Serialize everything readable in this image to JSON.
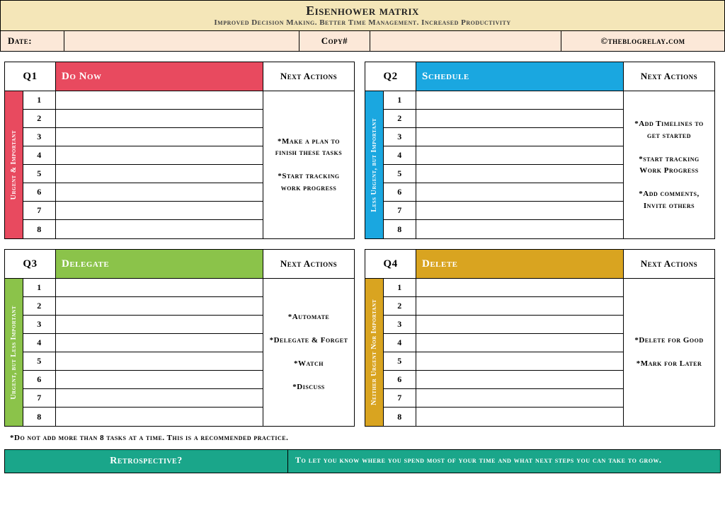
{
  "header": {
    "title": "Eisenhower matrix",
    "subtitle": "Improved Decision Making. Better Time Management. Increased Productivity",
    "date_label": "Date:",
    "date_value": "",
    "copy_label": "Copy#",
    "copy_value": "",
    "credit": "©theblogrelay.com",
    "title_bg": "#f4e6b8",
    "fields_bg": "#fce8d8"
  },
  "quadrants": [
    {
      "num": "Q1",
      "title": "Do Now",
      "next_label": "Next Actions",
      "side_label": "Urgent & Important",
      "color": "#e84a5f",
      "task_count": 8,
      "actions": "*Make a plan to finish these tasks\n\n*Start tracking work progress"
    },
    {
      "num": "Q2",
      "title": "Schedule",
      "next_label": "Next Actions",
      "side_label": "Less Urgent, but Important",
      "color": "#1aa7e0",
      "task_count": 8,
      "actions": "*Add Timelines to get started\n\n*start tracking Work Progress\n\n*Add comments, Invite others"
    },
    {
      "num": "Q3",
      "title": "Delegate",
      "next_label": "Next Actions",
      "side_label": "Urgent, but Less Important",
      "color": "#8bc34a",
      "task_count": 8,
      "actions": "*Automate\n\n*Delegate & Forget\n\n*Watch\n\n*Discuss"
    },
    {
      "num": "Q4",
      "title": "Delete",
      "next_label": "Next Actions",
      "side_label": "Neither Urgent Nor Important",
      "color": "#d9a420",
      "task_count": 8,
      "actions": "*Delete for Good\n\n*Mark for Later"
    }
  ],
  "footnote": "*Do not add more than 8 tasks at a time. This is a recommended practice.",
  "retro": {
    "label": "Retrospective?",
    "text": "To let you know where you spend most of your time and what next steps you can take to grow.",
    "bg": "#1aa68a"
  }
}
